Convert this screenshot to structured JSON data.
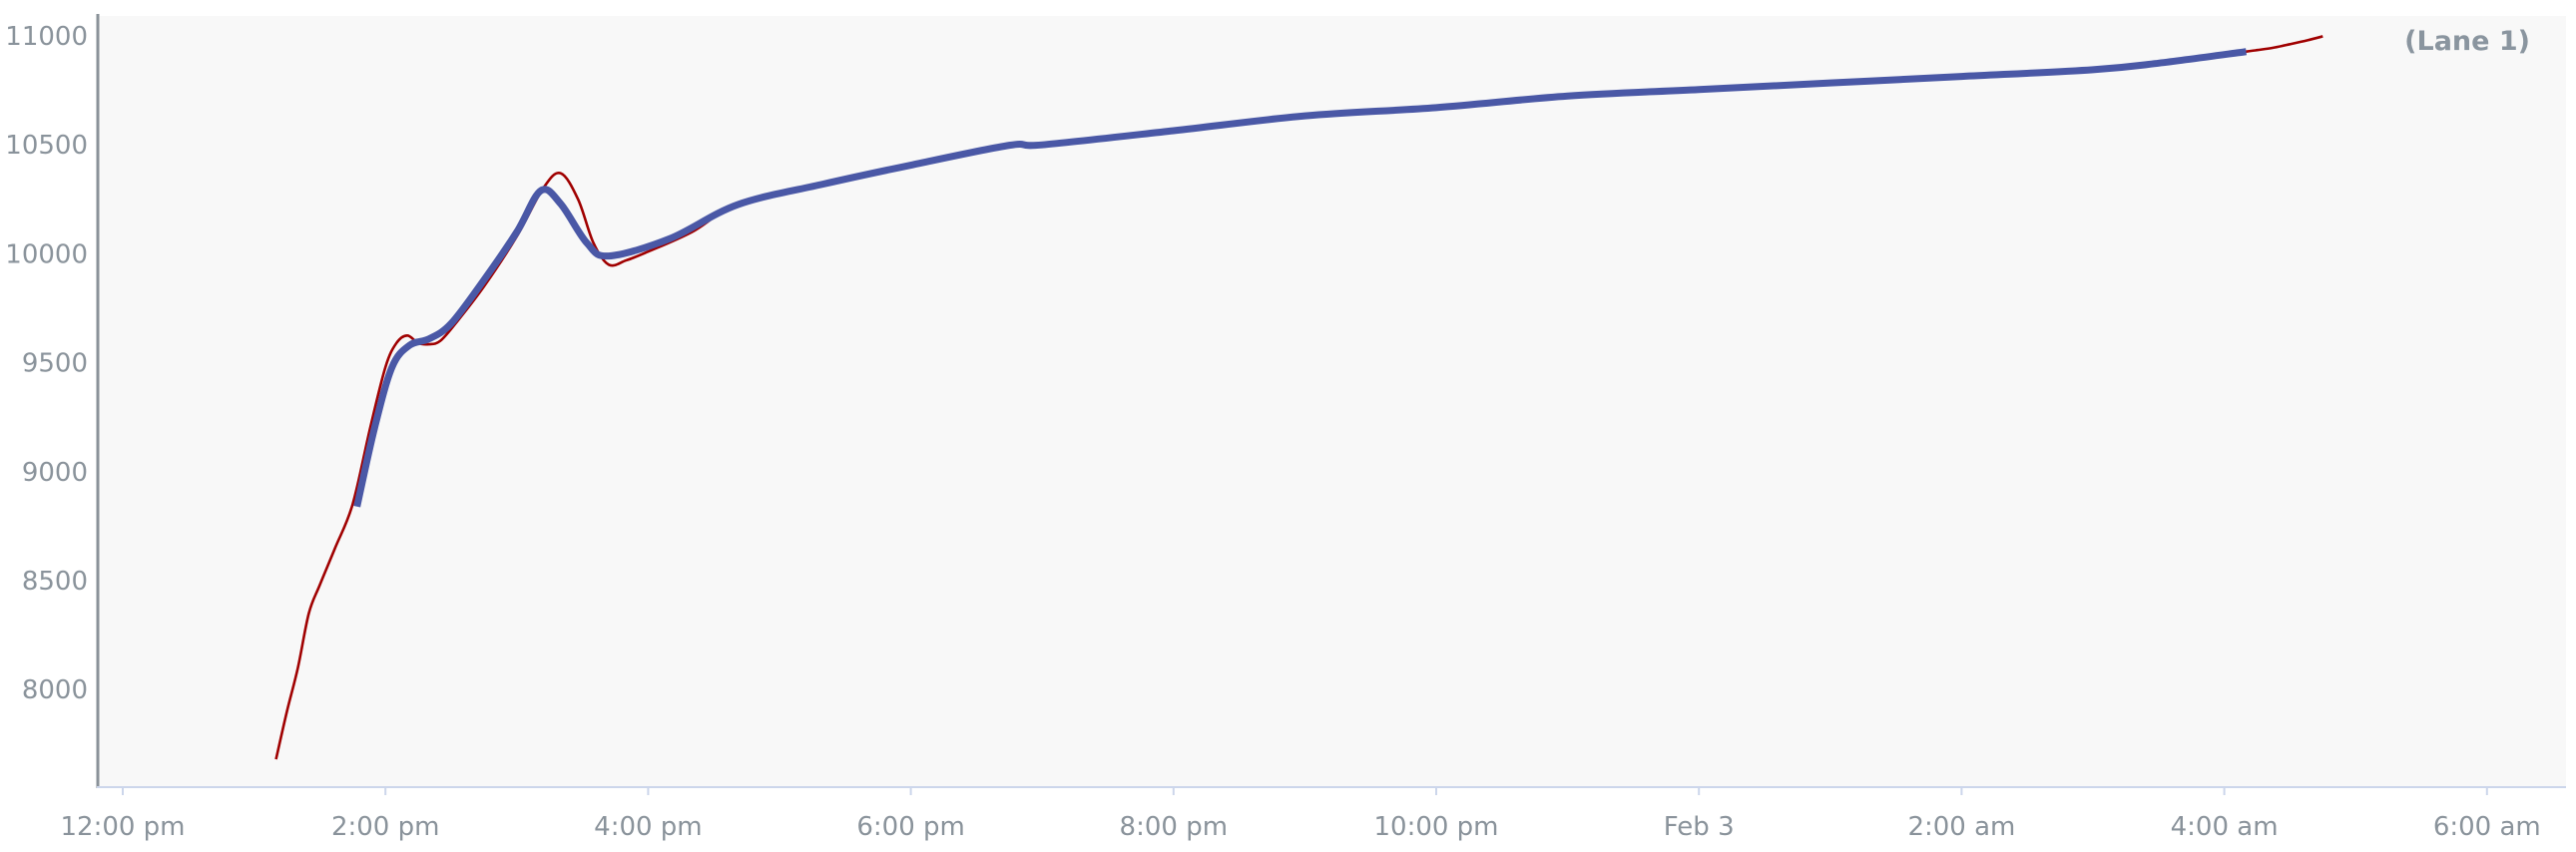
{
  "chart_data": {
    "type": "line",
    "title": "",
    "annotation": "(Lane 1)",
    "xlabel": "",
    "ylabel": "",
    "ylim": [
      7600,
      11100
    ],
    "xlim": [
      "2/2 11:48",
      "2/3 06:36"
    ],
    "grid": false,
    "y_ticks": [
      "8000",
      "8500",
      "9000",
      "9500",
      "10000",
      "10500",
      "11000"
    ],
    "x_ticks": [
      {
        "at": "2/2 12:00",
        "label": "12:00 pm"
      },
      {
        "at": "2/2 14:00",
        "label": "2:00 pm"
      },
      {
        "at": "2/2 16:00",
        "label": "4:00 pm"
      },
      {
        "at": "2/2 18:00",
        "label": "6:00 pm"
      },
      {
        "at": "2/2 20:00",
        "label": "8:00 pm"
      },
      {
        "at": "2/2 22:00",
        "label": "10:00 pm"
      },
      {
        "at": "2/3 00:00",
        "label": "Feb 3"
      },
      {
        "at": "2/3 02:00",
        "label": "2:00 am"
      },
      {
        "at": "2/3 04:00",
        "label": "4:00 am"
      },
      {
        "at": "2/3 06:00",
        "label": "6:00 am"
      }
    ],
    "colors": {
      "plot_background": "#f8f8f8",
      "raw": "#a00000",
      "smoothed": "#4a58a6",
      "y_axis": "#8a9299",
      "x_axis": "#ccd6eb"
    },
    "series": [
      {
        "color": "#a00000",
        "points": [
          [
            "2/2 13:10",
            7680
          ],
          [
            "2/2 13:15",
            7900
          ],
          [
            "2/2 13:20",
            8100
          ],
          [
            "2/2 13:25",
            8350
          ],
          [
            "2/2 13:30",
            8480
          ],
          [
            "2/2 13:37",
            8650
          ],
          [
            "2/2 13:45",
            8850
          ],
          [
            "2/2 13:53",
            9200
          ],
          [
            "2/2 14:00",
            9480
          ],
          [
            "2/2 14:05",
            9590
          ],
          [
            "2/2 14:10",
            9625
          ],
          [
            "2/2 14:15",
            9590
          ],
          [
            "2/2 14:20",
            9585
          ],
          [
            "2/2 14:25",
            9600
          ],
          [
            "2/2 14:32",
            9680
          ],
          [
            "2/2 14:45",
            9850
          ],
          [
            "2/2 15:00",
            10080
          ],
          [
            "2/2 15:12",
            10300
          ],
          [
            "2/2 15:20",
            10370
          ],
          [
            "2/2 15:28",
            10250
          ],
          [
            "2/2 15:35",
            10050
          ],
          [
            "2/2 15:42",
            9950
          ],
          [
            "2/2 15:50",
            9970
          ],
          [
            "2/2 16:00",
            10010
          ],
          [
            "2/2 16:20",
            10100
          ],
          [
            "2/2 16:41",
            10226
          ],
          [
            "2/2 17:20",
            10320
          ],
          [
            "2/2 18:00",
            10407
          ],
          [
            "2/2 18:45",
            10498
          ],
          [
            "2/2 19:00",
            10500
          ],
          [
            "2/2 20:00",
            10565
          ],
          [
            "2/2 21:00",
            10633
          ],
          [
            "2/2 22:00",
            10671
          ],
          [
            "2/2 23:00",
            10724
          ],
          [
            "2/3 00:00",
            10754
          ],
          [
            "2/3 01:00",
            10784
          ],
          [
            "2/3 02:00",
            10814
          ],
          [
            "2/3 03:00",
            10845
          ],
          [
            "2/3 03:30",
            10875
          ],
          [
            "2/3 04:10",
            10928
          ],
          [
            "2/3 04:15",
            10935
          ],
          [
            "2/3 04:22",
            10945
          ],
          [
            "2/3 04:30",
            10962
          ],
          [
            "2/3 04:38",
            10980
          ],
          [
            "2/3 04:45",
            10998
          ]
        ]
      },
      {
        "color": "#4a58a6",
        "points": [
          [
            "2/2 13:47",
            8840
          ],
          [
            "2/2 13:55",
            9200
          ],
          [
            "2/2 14:03",
            9480
          ],
          [
            "2/2 14:11",
            9580
          ],
          [
            "2/2 14:20",
            9610
          ],
          [
            "2/2 14:30",
            9680
          ],
          [
            "2/2 14:45",
            9880
          ],
          [
            "2/2 15:00",
            10100
          ],
          [
            "2/2 15:11",
            10290
          ],
          [
            "2/2 15:20",
            10230
          ],
          [
            "2/2 15:32",
            10050
          ],
          [
            "2/2 15:42",
            9990
          ],
          [
            "2/2 16:10",
            10070
          ],
          [
            "2/2 16:41",
            10226
          ],
          [
            "2/2 17:20",
            10320
          ],
          [
            "2/2 18:00",
            10407
          ],
          [
            "2/2 18:45",
            10498
          ],
          [
            "2/2 19:00",
            10500
          ],
          [
            "2/2 20:00",
            10565
          ],
          [
            "2/2 21:00",
            10633
          ],
          [
            "2/2 22:00",
            10671
          ],
          [
            "2/2 23:00",
            10724
          ],
          [
            "2/3 00:00",
            10754
          ],
          [
            "2/3 01:00",
            10784
          ],
          [
            "2/3 02:00",
            10814
          ],
          [
            "2/3 03:00",
            10845
          ],
          [
            "2/3 03:30",
            10875
          ],
          [
            "2/3 04:10",
            10928
          ]
        ]
      }
    ]
  }
}
